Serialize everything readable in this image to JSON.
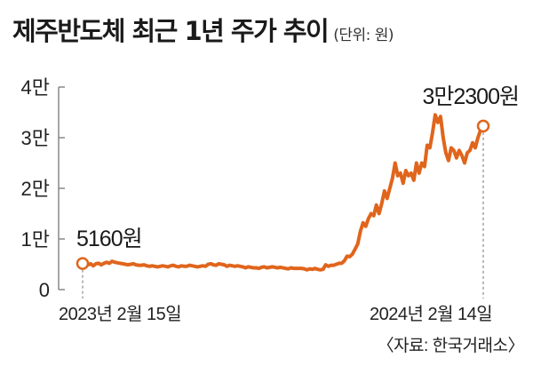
{
  "title": "제주반도체 최근 1년 주가 추이",
  "unit_note": "(단위: 원)",
  "source": "〈자료: 한국거래소〉",
  "colors": {
    "line": "#e0651c",
    "axis": "#888888",
    "text": "#222222"
  },
  "chart_data": {
    "type": "line",
    "title": "제주반도체 최근 1년 주가 추이",
    "ylabel": "",
    "xlabel": "",
    "ylim": [
      0,
      40000
    ],
    "y_ticks": [
      {
        "value": 0,
        "label": "0"
      },
      {
        "value": 10000,
        "label": "1만"
      },
      {
        "value": 20000,
        "label": "2만"
      },
      {
        "value": 30000,
        "label": "3만"
      },
      {
        "value": 40000,
        "label": "4만"
      }
    ],
    "x_labels": [
      "2023년 2월 15일",
      "2024년 2월 14일"
    ],
    "grid": false,
    "annotations": [
      {
        "text": "5160원",
        "point": "start"
      },
      {
        "text": "3만2300원",
        "point": "end"
      }
    ],
    "series": [
      {
        "values": [
          5160,
          5000,
          4900,
          5100,
          4700,
          5100,
          5200,
          4900,
          5200,
          5400,
          5200,
          5600,
          5400,
          5300,
          5200,
          5100,
          5000,
          4900,
          5000,
          5100,
          4900,
          4800,
          4800,
          4900,
          4700,
          4600,
          4700,
          4600,
          4500,
          4600,
          4700,
          4600,
          4500,
          4700,
          4800,
          4600,
          4500,
          4700,
          4600,
          4600,
          4800,
          4700,
          4600,
          4500,
          4600,
          4700,
          4600,
          5000,
          5100,
          4900,
          4800,
          5100,
          5000,
          4900,
          4600,
          4800,
          4700,
          4600,
          4700,
          4600,
          4500,
          4300,
          4500,
          4400,
          4300,
          4300,
          4200,
          4400,
          4500,
          4300,
          4400,
          4500,
          4400,
          4300,
          4400,
          4300,
          4200,
          4100,
          4300,
          4200,
          4200,
          4200,
          4200,
          4100,
          3900,
          4100,
          4000,
          4200,
          4000,
          3900,
          4000,
          4900,
          4600,
          4800,
          4800,
          5000,
          5200,
          5200,
          5700,
          6600,
          6500,
          7000,
          8000,
          9000,
          11500,
          13200,
          12500,
          14000,
          15000,
          14600,
          16700,
          15000,
          17000,
          19500,
          18000,
          20000,
          22000,
          25000,
          22500,
          23000,
          21000,
          23500,
          22500,
          23000,
          21600,
          25000,
          23000,
          25000,
          24300,
          28500,
          28000,
          31000,
          34500,
          33000,
          34200,
          30000,
          27000,
          25500,
          28000,
          27500,
          26000,
          27500,
          26500,
          25000,
          27000,
          27500,
          29000,
          28000,
          30000,
          31500,
          32300
        ]
      }
    ]
  }
}
